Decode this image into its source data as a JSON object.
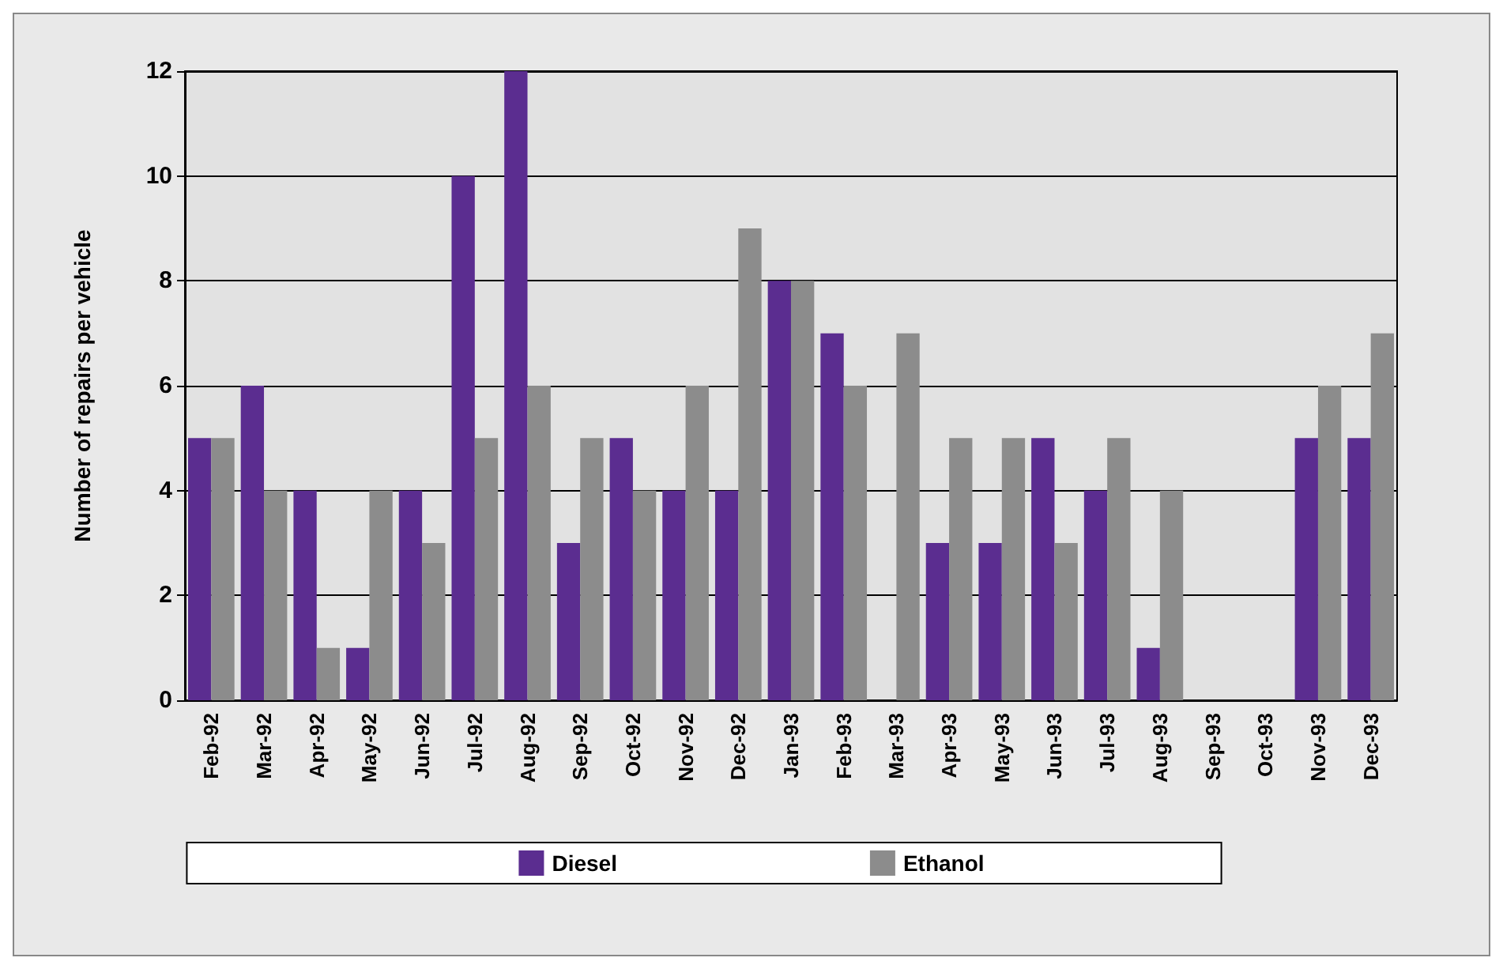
{
  "chart_data": {
    "type": "bar",
    "ylabel": "Number of repairs per vehicle",
    "categories": [
      "Feb-92",
      "Mar-92",
      "Apr-92",
      "May-92",
      "Jun-92",
      "Jul-92",
      "Aug-92",
      "Sep-92",
      "Oct-92",
      "Nov-92",
      "Dec-92",
      "Jan-93",
      "Feb-93",
      "Mar-93",
      "Apr-93",
      "May-93",
      "Jun-93",
      "Jul-93",
      "Aug-93",
      "Sep-93",
      "Oct-93",
      "Nov-93",
      "Dec-93"
    ],
    "series": [
      {
        "name": "Diesel",
        "color": "#5b2d90",
        "values": [
          5,
          6,
          4,
          1,
          4,
          10,
          12,
          3,
          5,
          4,
          4,
          8,
          7,
          0,
          3,
          3,
          5,
          4,
          1,
          0,
          0,
          5,
          5
        ]
      },
      {
        "name": "Ethanol",
        "color": "#8c8c8c",
        "values": [
          5,
          4,
          1,
          4,
          3,
          5,
          6,
          5,
          4,
          6,
          9,
          8,
          6,
          7,
          5,
          5,
          3,
          5,
          4,
          0,
          0,
          6,
          7
        ]
      }
    ],
    "ylim": [
      0,
      12
    ],
    "yticks": [
      0,
      2,
      4,
      6,
      8,
      10,
      12
    ],
    "grid": "y",
    "legend": "bottom"
  }
}
